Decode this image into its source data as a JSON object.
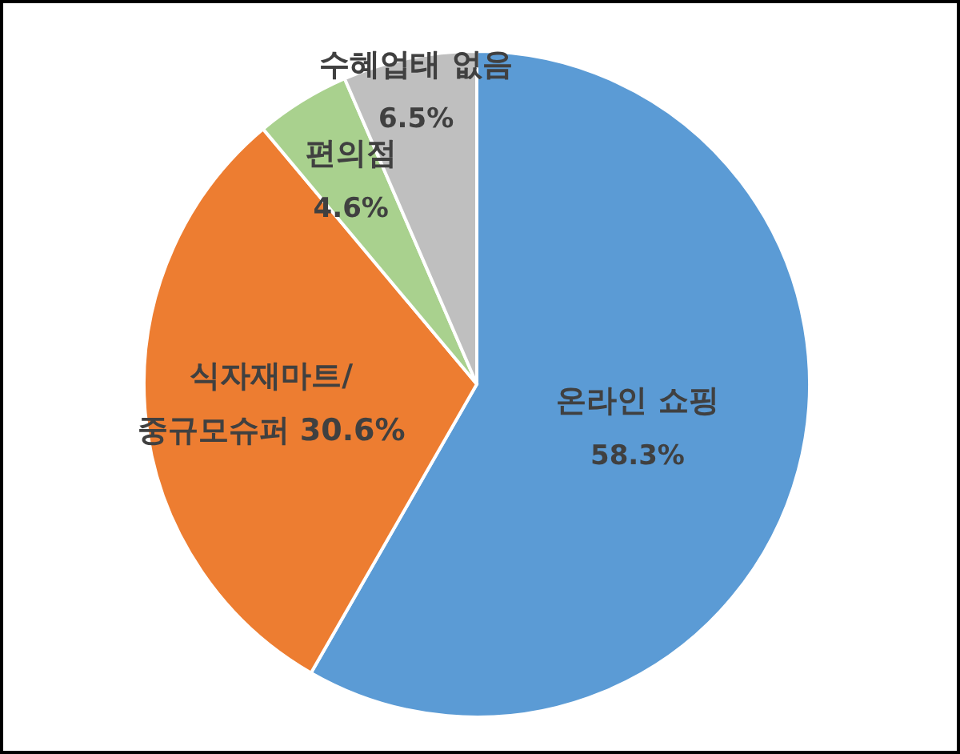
{
  "chart_data": {
    "type": "pie",
    "categories": [
      "온라인 쇼핑",
      "식자재마트/중규모슈퍼",
      "편의점",
      "수혜업태 없음"
    ],
    "values": [
      58.3,
      30.6,
      4.6,
      6.5
    ],
    "value_labels": [
      "58.3%",
      "30.6%",
      "4.6%",
      "6.5%"
    ],
    "colors": [
      "#5b9bd5",
      "#ed7d31",
      "#a9d18e",
      "#bfbfbf"
    ]
  }
}
